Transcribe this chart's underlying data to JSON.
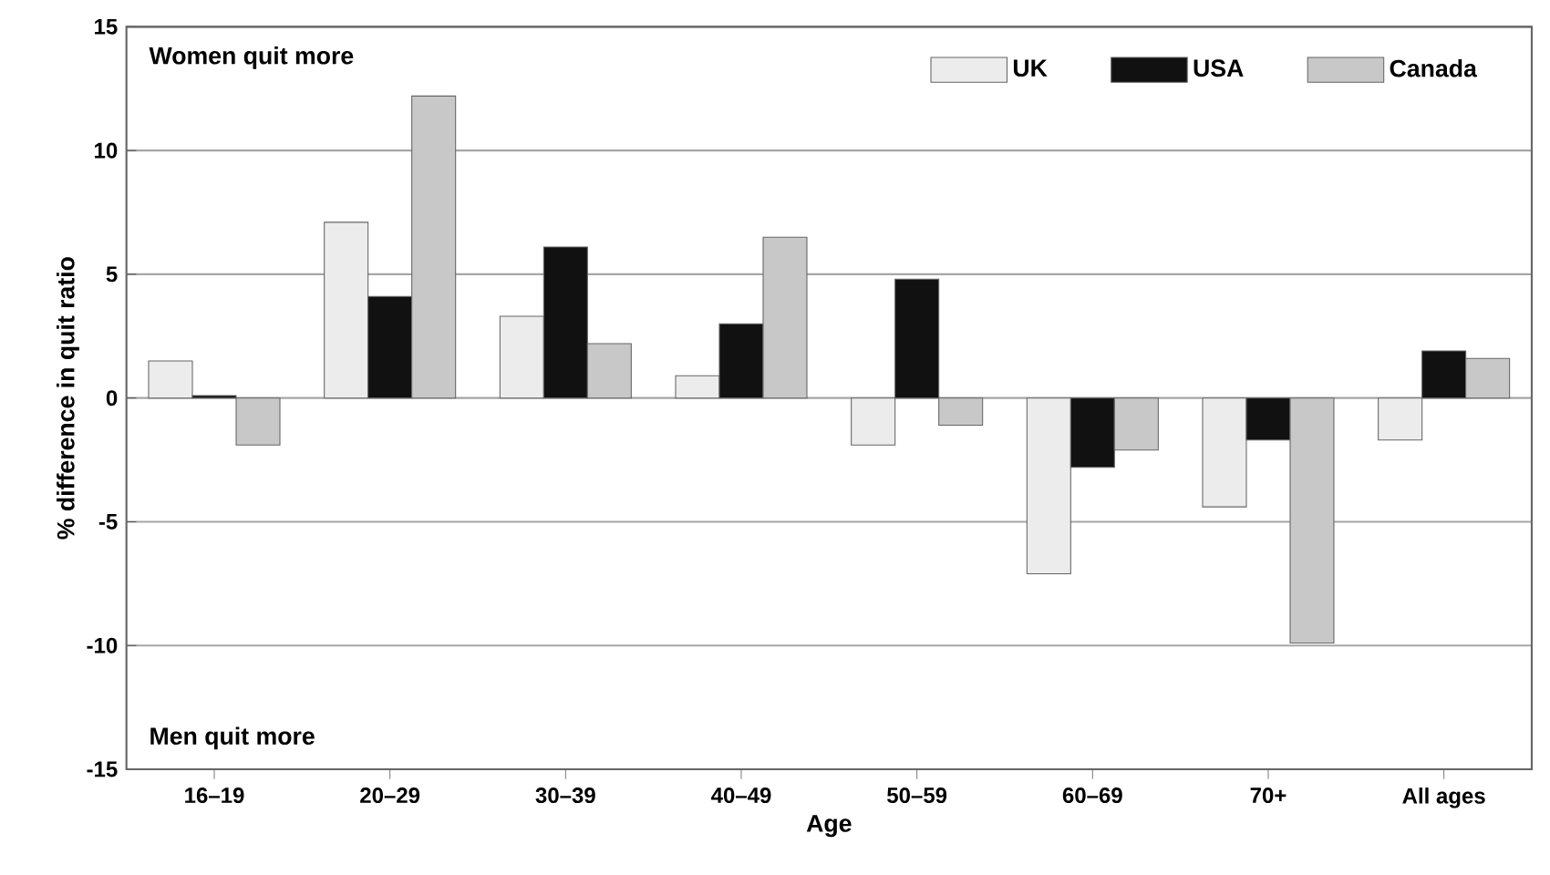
{
  "chart_data": {
    "type": "bar",
    "xlabel": "Age",
    "ylabel": "% difference in quit ratio",
    "categories": [
      "16–19",
      "20–29",
      "30–39",
      "40–49",
      "50–59",
      "60–69",
      "70+",
      "All ages"
    ],
    "series": [
      {
        "name": "UK",
        "color": "#ececec",
        "values": [
          1.5,
          7.1,
          3.3,
          0.9,
          -1.9,
          -7.1,
          -4.4,
          -1.7
        ]
      },
      {
        "name": "USA",
        "color": "#111111",
        "values": [
          0.1,
          4.1,
          6.1,
          3.0,
          4.8,
          -2.8,
          -1.7,
          1.9
        ]
      },
      {
        "name": "Canada",
        "color": "#c8c8c8",
        "values": [
          -1.9,
          12.2,
          2.2,
          6.5,
          -1.1,
          -2.1,
          -9.9,
          1.6
        ]
      }
    ],
    "ylim": [
      -15,
      15
    ],
    "yticks": [
      -15,
      -10,
      -5,
      0,
      5,
      10,
      15
    ],
    "grid": "y",
    "legend": "top right",
    "annotations": [
      "Women quit more",
      "Men quit more"
    ]
  }
}
